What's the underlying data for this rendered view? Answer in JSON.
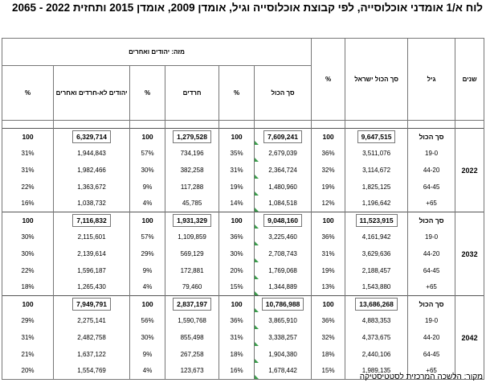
{
  "title": "לוח א/1 אומדני אוכלוסייה, לפי קבוצת אוכלוסייה וגיל, אומדן 2009, אומדן 2015 ותחזית 2022 - 2065",
  "headers": {
    "years": "שנים",
    "age": "גיל",
    "total_israel": "סך הכול ישראל",
    "pct": "%",
    "of_which": "מזה: יהודים ואחרים",
    "total": "סך הכול",
    "haredim": "חרדים",
    "non_haredi": "יהודים לא-חרדים ואחרים"
  },
  "groups": [
    {
      "year": "2022",
      "rows": [
        {
          "age": "סך הכול",
          "total_israel": "9,647,515",
          "pct1": "100",
          "total": "7,609,241",
          "pct2": "100",
          "haredim": "1,279,528",
          "pct3": "100",
          "non_haredi": "6,329,714",
          "pct4": "100"
        },
        {
          "age": "19-0",
          "total_israel": "3,511,076",
          "pct1": "36%",
          "total": "2,679,039",
          "pct2": "35%",
          "haredim": "734,196",
          "pct3": "57%",
          "non_haredi": "1,944,843",
          "pct4": "31%"
        },
        {
          "age": "44-20",
          "total_israel": "3,114,672",
          "pct1": "32%",
          "total": "2,364,724",
          "pct2": "31%",
          "haredim": "382,258",
          "pct3": "30%",
          "non_haredi": "1,982,466",
          "pct4": "31%"
        },
        {
          "age": "64-45",
          "total_israel": "1,825,125",
          "pct1": "19%",
          "total": "1,480,960",
          "pct2": "19%",
          "haredim": "117,288",
          "pct3": "9%",
          "non_haredi": "1,363,672",
          "pct4": "22%"
        },
        {
          "age": "65+",
          "total_israel": "1,196,642",
          "pct1": "12%",
          "total": "1,084,518",
          "pct2": "14%",
          "haredim": "45,785",
          "pct3": "4%",
          "non_haredi": "1,038,732",
          "pct4": "16%"
        }
      ]
    },
    {
      "year": "2032",
      "rows": [
        {
          "age": "סך הכול",
          "total_israel": "11,523,915",
          "pct1": "100",
          "total": "9,048,160",
          "pct2": "100",
          "haredim": "1,931,329",
          "pct3": "100",
          "non_haredi": "7,116,832",
          "pct4": "100"
        },
        {
          "age": "19-0",
          "total_israel": "4,161,942",
          "pct1": "36%",
          "total": "3,225,460",
          "pct2": "36%",
          "haredim": "1,109,859",
          "pct3": "57%",
          "non_haredi": "2,115,601",
          "pct4": "30%"
        },
        {
          "age": "44-20",
          "total_israel": "3,629,636",
          "pct1": "31%",
          "total": "2,708,743",
          "pct2": "30%",
          "haredim": "569,129",
          "pct3": "29%",
          "non_haredi": "2,139,614",
          "pct4": "30%"
        },
        {
          "age": "64-45",
          "total_israel": "2,188,457",
          "pct1": "19%",
          "total": "1,769,068",
          "pct2": "20%",
          "haredim": "172,881",
          "pct3": "9%",
          "non_haredi": "1,596,187",
          "pct4": "22%"
        },
        {
          "age": "65+",
          "total_israel": "1,543,880",
          "pct1": "13%",
          "total": "1,344,889",
          "pct2": "15%",
          "haredim": "79,460",
          "pct3": "4%",
          "non_haredi": "1,265,430",
          "pct4": "18%"
        }
      ]
    },
    {
      "year": "2042",
      "rows": [
        {
          "age": "סך הכול",
          "total_israel": "13,686,268",
          "pct1": "100",
          "total": "10,786,988",
          "pct2": "100",
          "haredim": "2,837,197",
          "pct3": "100",
          "non_haredi": "7,949,791",
          "pct4": "100"
        },
        {
          "age": "19-0",
          "total_israel": "4,883,353",
          "pct1": "36%",
          "total": "3,865,910",
          "pct2": "36%",
          "haredim": "1,590,768",
          "pct3": "56%",
          "non_haredi": "2,275,141",
          "pct4": "29%"
        },
        {
          "age": "44-20",
          "total_israel": "4,373,675",
          "pct1": "32%",
          "total": "3,338,257",
          "pct2": "31%",
          "haredim": "855,498",
          "pct3": "30%",
          "non_haredi": "2,482,758",
          "pct4": "31%"
        },
        {
          "age": "64-45",
          "total_israel": "2,440,106",
          "pct1": "18%",
          "total": "1,904,380",
          "pct2": "18%",
          "haredim": "267,258",
          "pct3": "9%",
          "non_haredi": "1,637,122",
          "pct4": "21%"
        },
        {
          "age": "65+",
          "total_israel": "1,989,135",
          "pct1": "15%",
          "total": "1,678,442",
          "pct2": "16%",
          "haredim": "123,673",
          "pct3": "4%",
          "non_haredi": "1,554,769",
          "pct4": "20%"
        }
      ]
    }
  ],
  "source": "מקור: הלשכה המרכזית לסטטיסטיקה",
  "colors": {
    "marker": "#3a9d4b",
    "border": "#777777"
  }
}
